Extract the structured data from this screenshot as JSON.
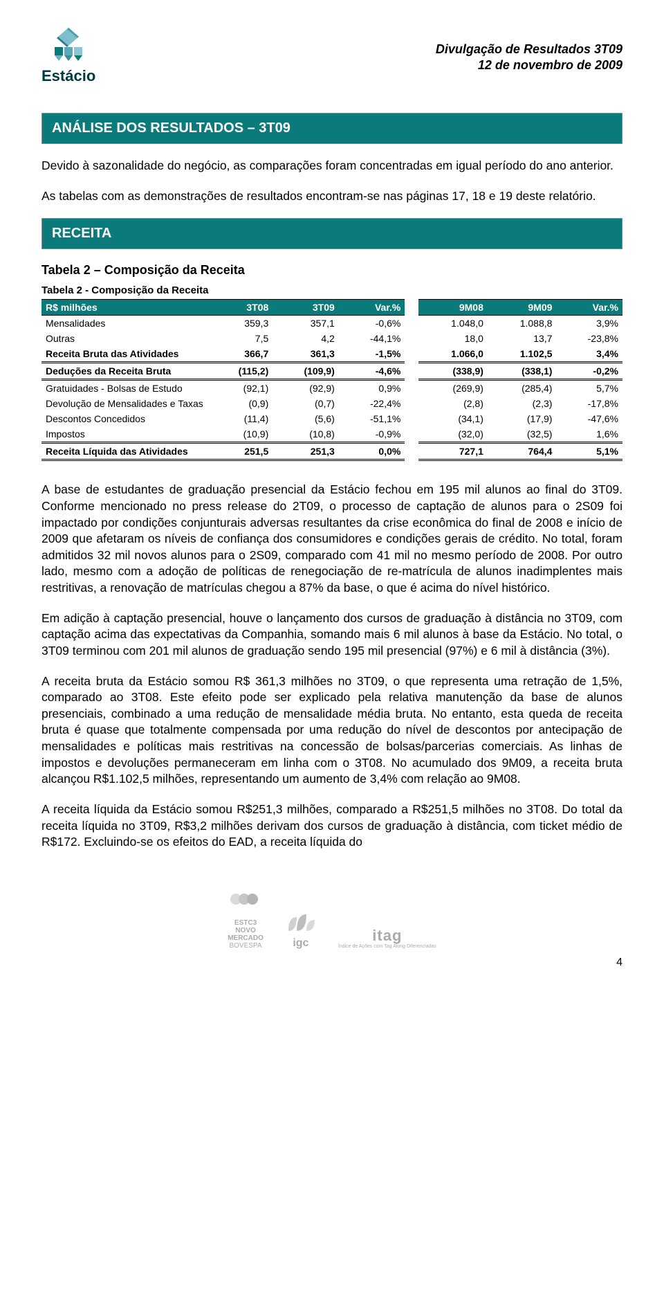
{
  "header": {
    "brand": "Estácio",
    "doc_title_line1": "Divulgação de Resultados 3T09",
    "doc_title_line2": "12 de novembro de 2009"
  },
  "sections": {
    "analise_title": "ANÁLISE DOS RESULTADOS – 3T09",
    "analise_p1": "Devido à sazonalidade do negócio, as comparações foram concentradas em igual período do ano anterior.",
    "analise_p2": "As tabelas com as demonstrações de resultados encontram-se nas páginas 17, 18 e 19 deste relatório.",
    "receita_title": "RECEITA"
  },
  "table2": {
    "title": "Tabela 2 – Composição da Receita",
    "subtitle": "Tabela 2 - Composição da Receita",
    "header_label": "R$ milhões",
    "cols_a": [
      "3T08",
      "3T09",
      "Var.%"
    ],
    "cols_b": [
      "9M08",
      "9M09",
      "Var.%"
    ],
    "rows": [
      {
        "label": "Mensalidades",
        "a": [
          "359,3",
          "357,1",
          "-0,6%"
        ],
        "b": [
          "1.048,0",
          "1.088,8",
          "3,9%"
        ],
        "style": ""
      },
      {
        "label": "Outras",
        "a": [
          "7,5",
          "4,2",
          "-44,1%"
        ],
        "b": [
          "18,0",
          "13,7",
          "-23,8%"
        ],
        "style": ""
      },
      {
        "label": "Receita Bruta das Atividades",
        "a": [
          "366,7",
          "361,3",
          "-1,5%"
        ],
        "b": [
          "1.066,0",
          "1.102,5",
          "3,4%"
        ],
        "style": "bold"
      },
      {
        "label": "Deduções da Receita Bruta",
        "a": [
          "(115,2)",
          "(109,9)",
          "-4,6%"
        ],
        "b": [
          "(338,9)",
          "(338,1)",
          "-0,2%"
        ],
        "style": "bold dbl-top dbl-bottom"
      },
      {
        "label": "Gratuidades - Bolsas de Estudo",
        "a": [
          "(92,1)",
          "(92,9)",
          "0,9%"
        ],
        "b": [
          "(269,9)",
          "(285,4)",
          "5,7%"
        ],
        "style": ""
      },
      {
        "label": "Devolução de Mensalidades e Taxas",
        "a": [
          "(0,9)",
          "(0,7)",
          "-22,4%"
        ],
        "b": [
          "(2,8)",
          "(2,3)",
          "-17,8%"
        ],
        "style": ""
      },
      {
        "label": "Descontos Concedidos",
        "a": [
          "(11,4)",
          "(5,6)",
          "-51,1%"
        ],
        "b": [
          "(34,1)",
          "(17,9)",
          "-47,6%"
        ],
        "style": ""
      },
      {
        "label": "Impostos",
        "a": [
          "(10,9)",
          "(10,8)",
          "-0,9%"
        ],
        "b": [
          "(32,0)",
          "(32,5)",
          "1,6%"
        ],
        "style": ""
      },
      {
        "label": "Receita Líquida das Atividades",
        "a": [
          "251,5",
          "251,3",
          "0,0%"
        ],
        "b": [
          "727,1",
          "764,4",
          "5,1%"
        ],
        "style": "bold dbl-top dbl-bottom"
      }
    ]
  },
  "paragraphs": {
    "p1": "A base de estudantes de graduação presencial da Estácio fechou em 195 mil alunos ao final do 3T09. Conforme mencionado no press release do 2T09, o processo de captação de alunos para o 2S09 foi impactado por condições conjunturais adversas resultantes da crise econômica do final de 2008 e início de 2009 que afetaram os níveis de confiança dos consumidores e condições gerais de crédito. No total, foram admitidos 32 mil novos alunos para o 2S09, comparado com 41 mil no mesmo período de 2008. Por outro lado, mesmo com a adoção de políticas de renegociação de re-matrícula de alunos inadimplentes mais restritivas, a renovação de matrículas chegou a 87% da base, o que é acima do nível histórico.",
    "p2": "Em adição à captação presencial, houve o lançamento dos cursos de graduação à distância no 3T09, com captação acima das expectativas da Companhia, somando mais 6 mil alunos à base da Estácio. No total, o 3T09 terminou com 201 mil alunos de graduação sendo 195 mil presencial (97%) e 6 mil à distância (3%).",
    "p3": "A receita bruta da Estácio somou R$ 361,3 milhões no 3T09, o que representa uma retração de 1,5%, comparado ao 3T08. Este efeito pode ser explicado pela relativa manutenção da base de alunos presenciais, combinado a uma redução de mensalidade média bruta. No entanto, esta queda de receita bruta é quase que totalmente compensada por uma redução do nível de descontos por antecipação de mensalidades e políticas mais restritivas na concessão de bolsas/parcerias comerciais. As linhas de impostos e devoluções permaneceram em linha com o 3T08. No acumulado dos 9M09, a receita bruta alcançou R$1.102,5 milhões, representando um aumento de 3,4% com relação ao 9M08.",
    "p4": "A receita líquida da Estácio somou R$251,3 milhões, comparado a R$251,5 milhões no 3T08. Do total da receita líquida no 3T09, R$3,2 milhões derivam dos cursos de graduação à distância, com ticket médio de R$172. Excluindo-se os efeitos do EAD, a receita líquida do"
  },
  "footer": {
    "logo1_line1": "ESTC3",
    "logo1_line2": "NOVO",
    "logo1_line3": "MERCADO",
    "logo1_line4": "BOVESPA",
    "logo2": "igc",
    "logo3": "itag",
    "logo3_sub": "Índice de Ações com Tag Along Diferenciadas",
    "page_number": "4"
  },
  "colors": {
    "teal": "#0a7a7a",
    "dark_teal_text": "#003844",
    "text": "#000000",
    "bg": "#ffffff"
  }
}
